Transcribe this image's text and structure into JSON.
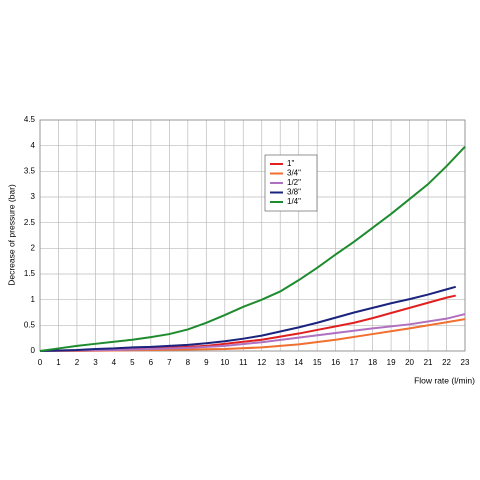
{
  "chart_data": {
    "type": "line",
    "x_label": "Flow rate (l/min)",
    "y_label": "Decrease of pressure (bar)",
    "xlim": [
      0,
      23
    ],
    "ylim": [
      0,
      4.5
    ],
    "xticks": [
      0,
      1,
      2,
      3,
      4,
      5,
      6,
      7,
      8,
      9,
      10,
      11,
      12,
      13,
      14,
      15,
      16,
      17,
      18,
      19,
      20,
      21,
      22,
      23
    ],
    "yticks": [
      0,
      0.5,
      1,
      1.5,
      2,
      2.5,
      3,
      3.5,
      4,
      4.5
    ],
    "grid": true,
    "series": [
      {
        "name": "1\"",
        "color": "#e02020",
        "x": [
          0,
          2,
          4,
          6,
          8,
          9,
          10,
          11,
          12,
          13,
          14,
          15,
          16,
          17,
          18,
          19,
          20,
          21,
          22,
          22.5
        ],
        "values": [
          0,
          0.01,
          0.03,
          0.05,
          0.08,
          0.1,
          0.14,
          0.18,
          0.22,
          0.28,
          0.34,
          0.41,
          0.48,
          0.55,
          0.64,
          0.74,
          0.84,
          0.94,
          1.04,
          1.08
        ]
      },
      {
        "name": "3/4\"",
        "color": "#f07030",
        "x": [
          0,
          2,
          4,
          6,
          8,
          10,
          12,
          14,
          16,
          18,
          20,
          22,
          23
        ],
        "values": [
          0,
          0,
          0.01,
          0.02,
          0.03,
          0.04,
          0.07,
          0.13,
          0.22,
          0.33,
          0.44,
          0.56,
          0.62
        ]
      },
      {
        "name": "1/2\"",
        "color": "#b070c0",
        "x": [
          0,
          2,
          4,
          6,
          8,
          10,
          12,
          14,
          16,
          18,
          20,
          22,
          23
        ],
        "values": [
          0,
          0.01,
          0.02,
          0.04,
          0.06,
          0.1,
          0.17,
          0.26,
          0.35,
          0.44,
          0.52,
          0.63,
          0.72
        ]
      },
      {
        "name": "3/8\"",
        "color": "#1a237e",
        "x": [
          0,
          1,
          2,
          3,
          4,
          5,
          6,
          7,
          8,
          9,
          10,
          11,
          12,
          13,
          14,
          15,
          16,
          17,
          18,
          19,
          20,
          21,
          22,
          22.5
        ],
        "values": [
          0,
          0.01,
          0.02,
          0.04,
          0.05,
          0.07,
          0.08,
          0.1,
          0.12,
          0.15,
          0.19,
          0.24,
          0.3,
          0.38,
          0.46,
          0.55,
          0.65,
          0.75,
          0.84,
          0.93,
          1.01,
          1.1,
          1.2,
          1.25
        ]
      },
      {
        "name": "1/4\"",
        "color": "#1e8c2e",
        "x": [
          0,
          1,
          2,
          3,
          4,
          5,
          6,
          7,
          8,
          9,
          10,
          11,
          12,
          13,
          14,
          15,
          16,
          17,
          18,
          19,
          20,
          21,
          22,
          23
        ],
        "values": [
          0,
          0.05,
          0.1,
          0.14,
          0.18,
          0.22,
          0.27,
          0.33,
          0.42,
          0.55,
          0.7,
          0.86,
          1.0,
          1.16,
          1.38,
          1.62,
          1.88,
          2.13,
          2.4,
          2.67,
          2.96,
          3.25,
          3.6,
          3.98
        ]
      }
    ]
  }
}
